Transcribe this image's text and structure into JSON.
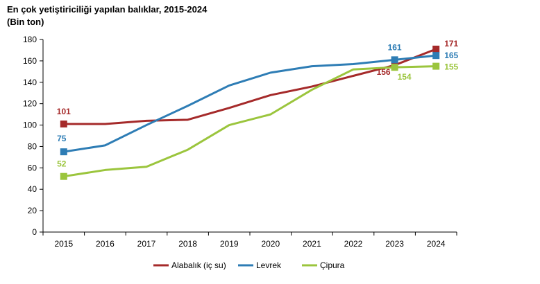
{
  "chart_data": {
    "type": "line",
    "title": "En çok yetiştiriciliği yapılan balıklar, 2015-2024",
    "subtitle": "(Bin ton)",
    "xlabel": "",
    "ylabel": "",
    "x": [
      "2015",
      "2016",
      "2017",
      "2018",
      "2019",
      "2020",
      "2021",
      "2022",
      "2023",
      "2024"
    ],
    "ylim": [
      0,
      180
    ],
    "yticks": [
      0,
      20,
      40,
      60,
      80,
      100,
      120,
      140,
      160,
      180
    ],
    "grid": false,
    "legend": "bottom",
    "series": [
      {
        "name": "Alabalık (iç su)",
        "color": "#A52A2A",
        "values": [
          101,
          101,
          104,
          105,
          116,
          128,
          136,
          146,
          156,
          171
        ],
        "labels": [
          {
            "index": 0,
            "text": "101"
          },
          {
            "index": 8,
            "text": "156"
          },
          {
            "index": 9,
            "text": "171"
          }
        ]
      },
      {
        "name": "Levrek",
        "color": "#2E7DB5",
        "values": [
          75,
          81,
          100,
          118,
          137,
          149,
          155,
          157,
          161,
          165
        ],
        "labels": [
          {
            "index": 0,
            "text": "75"
          },
          {
            "index": 8,
            "text": "161"
          },
          {
            "index": 9,
            "text": "165"
          }
        ]
      },
      {
        "name": "Çipura",
        "color": "#9BC53D",
        "values": [
          52,
          58,
          61,
          77,
          100,
          110,
          133,
          152,
          154,
          155
        ],
        "labels": [
          {
            "index": 0,
            "text": "52"
          },
          {
            "index": 8,
            "text": "154"
          },
          {
            "index": 9,
            "text": "155"
          }
        ]
      }
    ]
  }
}
